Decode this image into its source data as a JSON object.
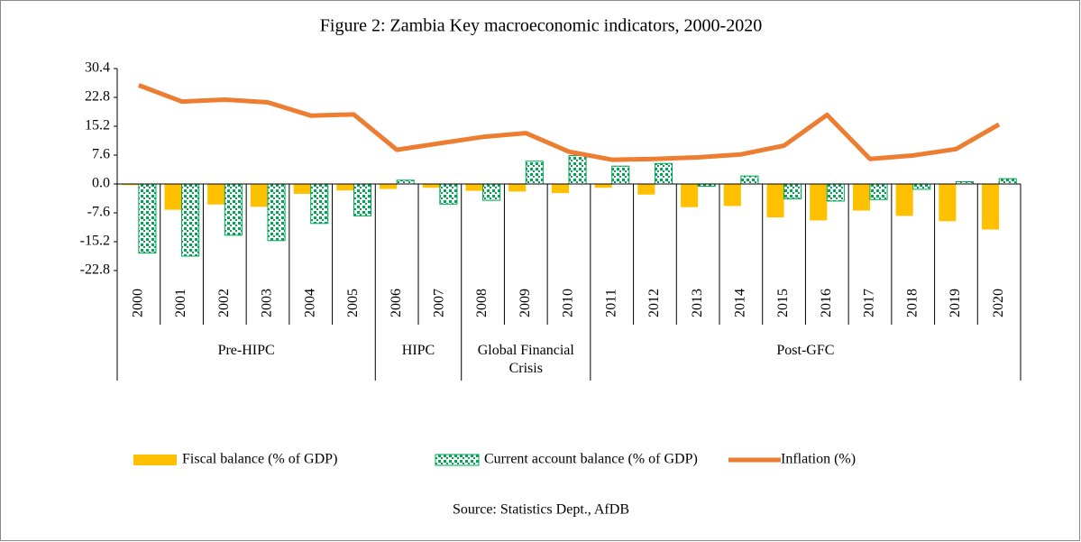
{
  "chart_data": {
    "type": "bar-line",
    "title": "Figure 2: Zambia Key macroeconomic indicators, 2000-2020",
    "source": "Source: Statistics Dept., AfDB",
    "category_groups": [
      {
        "label": "Pre-HIPC",
        "categories": [
          "2000",
          "2001",
          "2002",
          "2003",
          "2004",
          "2005"
        ]
      },
      {
        "label": "HIPC",
        "categories": [
          "2006",
          "2007"
        ]
      },
      {
        "label": "Global Financial Crisis",
        "categories": [
          "2008",
          "2009",
          "2010"
        ]
      },
      {
        "label": "Post-GFC",
        "categories": [
          "2011",
          "2012",
          "2013",
          "2014",
          "2015",
          "2016",
          "2017",
          "2018",
          "2019",
          "2020"
        ]
      }
    ],
    "series": [
      {
        "name": "Fiscal balance (% of GDP)",
        "type": "bar",
        "color": "#ffc000",
        "values": [
          -0.3,
          -6.8,
          -5.4,
          -6.0,
          -2.6,
          -1.7,
          -1.3,
          -1.0,
          -1.8,
          -2.0,
          -2.4,
          -1.0,
          -2.8,
          -6.1,
          -5.8,
          -8.8,
          -9.6,
          -7.0,
          -8.4,
          -9.8,
          -12.0
        ]
      },
      {
        "name": "Current account balance (% of GDP)",
        "type": "bar",
        "pattern": "dotted",
        "color": "#00a651",
        "values": [
          -18.2,
          -19.0,
          -13.5,
          -14.9,
          -10.4,
          -8.4,
          1.0,
          -5.3,
          -4.3,
          6.0,
          7.5,
          4.7,
          5.4,
          -0.6,
          2.1,
          -3.9,
          -4.5,
          -4.1,
          -1.4,
          0.6,
          1.4
        ]
      },
      {
        "name": "Inflation (%)",
        "type": "line",
        "color": "#ed7d31",
        "values": [
          26.0,
          21.7,
          22.2,
          21.5,
          18.0,
          18.3,
          9.0,
          10.7,
          12.4,
          13.4,
          8.5,
          6.4,
          6.6,
          7.0,
          7.8,
          10.1,
          18.2,
          6.6,
          7.5,
          9.2,
          15.7
        ]
      }
    ],
    "ylim": [
      -22.8,
      30.4
    ],
    "yticks": [
      30.4,
      22.8,
      15.2,
      7.6,
      {
        "value": 0,
        "label": "0.0"
      },
      -7.6,
      -15.2,
      -22.8
    ],
    "legend": "bottom"
  }
}
